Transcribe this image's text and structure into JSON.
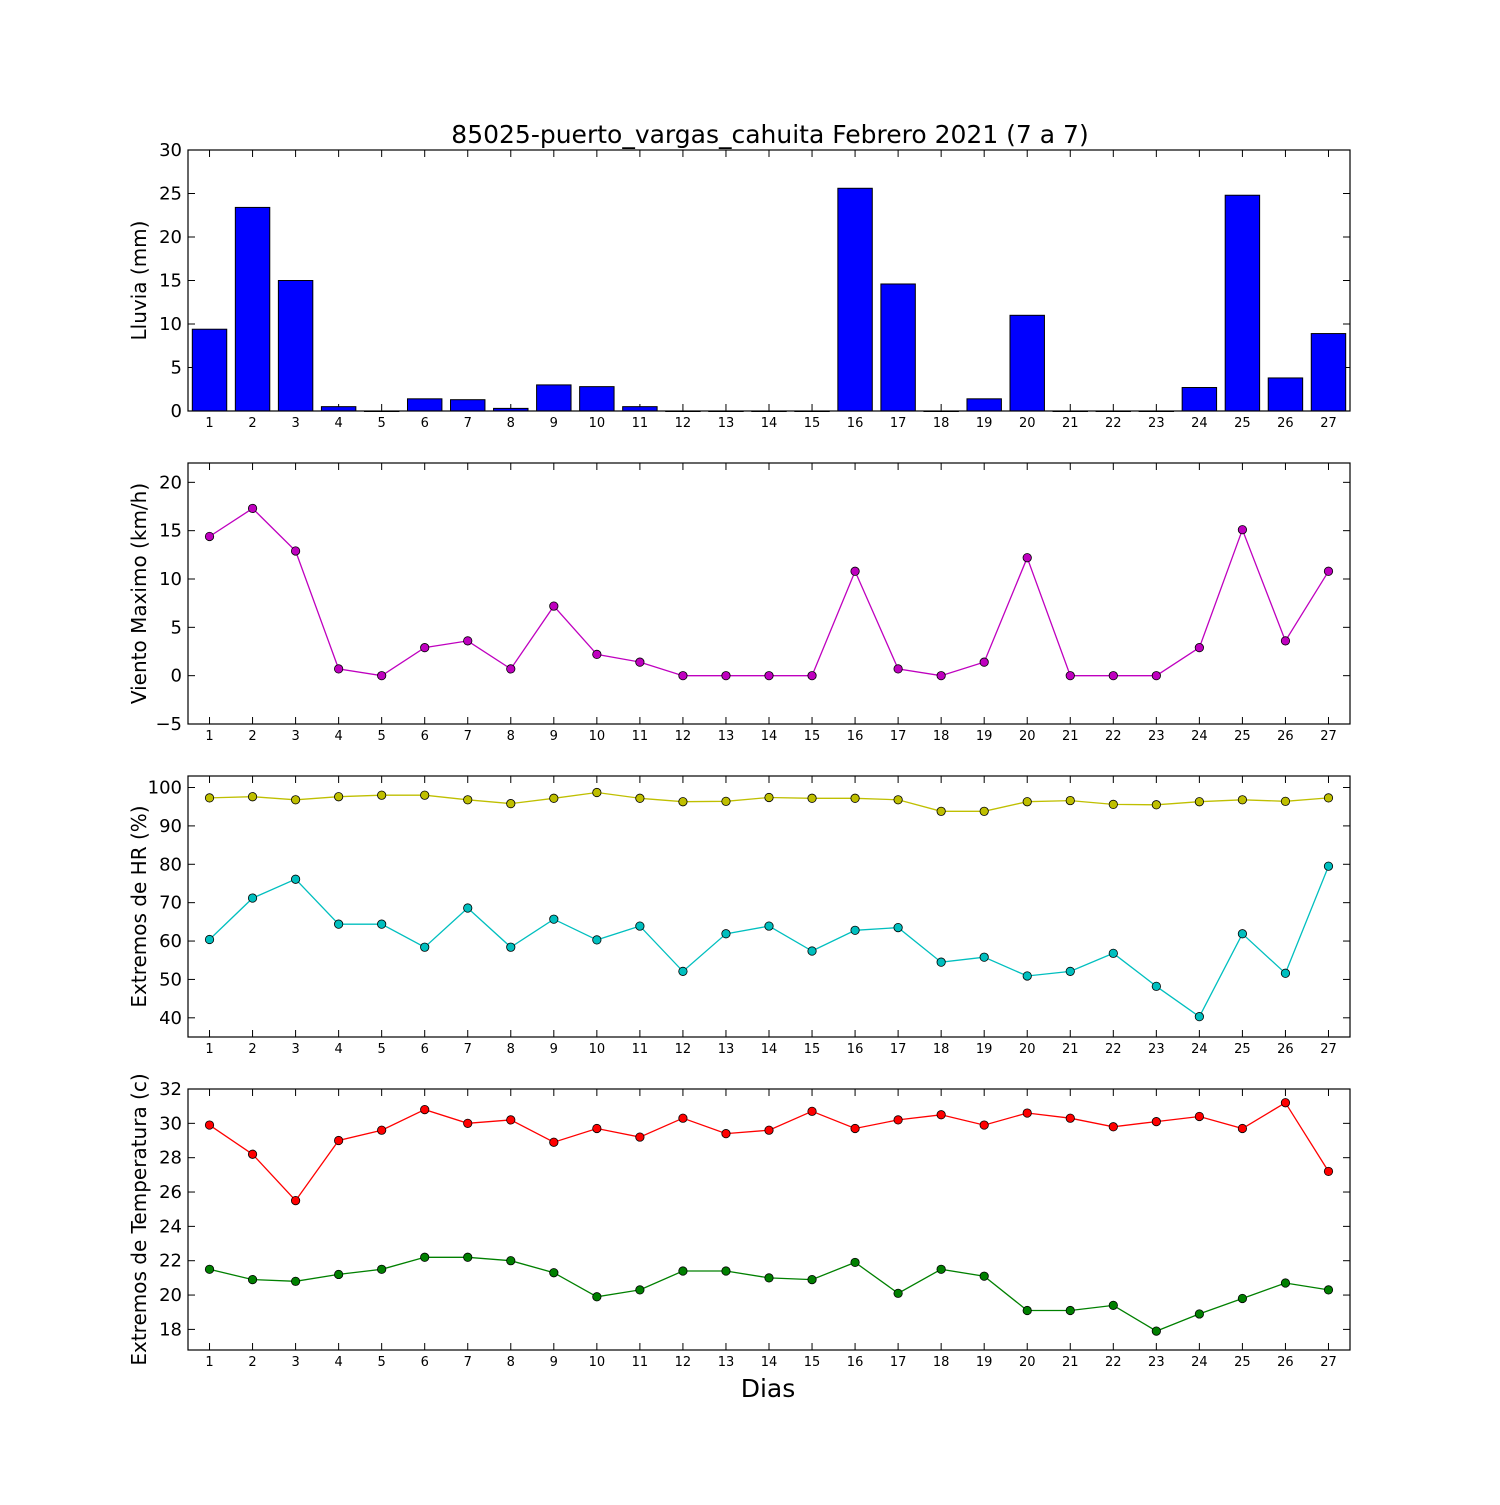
{
  "figure": {
    "title": "85025-puerto_vargas_cahuita Febrero 2021  (7 a 7)",
    "xlabel": "Dias"
  },
  "chart_data": [
    {
      "type": "bar",
      "ylabel": "Lluvia (mm)",
      "ylim": [
        0,
        30
      ],
      "yticks": [
        0,
        5,
        10,
        15,
        20,
        25,
        30
      ],
      "xticks": [
        1,
        2,
        3,
        4,
        5,
        6,
        7,
        8,
        9,
        10,
        11,
        12,
        13,
        14,
        15,
        16,
        17,
        18,
        19,
        20,
        21,
        22,
        23,
        24,
        25,
        26,
        27
      ],
      "categories": [
        1,
        2,
        3,
        4,
        5,
        6,
        7,
        8,
        9,
        10,
        11,
        12,
        13,
        14,
        15,
        16,
        17,
        18,
        19,
        20,
        21,
        22,
        23,
        24,
        25,
        26,
        27
      ],
      "series": [
        {
          "color": "#0000ff",
          "values": [
            9.4,
            23.4,
            15.0,
            0.5,
            0.0,
            1.4,
            1.3,
            0.3,
            3.0,
            2.8,
            0.5,
            0.0,
            0.0,
            0.0,
            0.0,
            25.6,
            14.6,
            0.0,
            1.4,
            11.0,
            0.0,
            0.0,
            0.0,
            2.7,
            24.8,
            3.8,
            8.9
          ]
        }
      ]
    },
    {
      "type": "line",
      "ylabel": "Viento Maximo (km/h)",
      "ylim": [
        -5,
        22
      ],
      "yticks": [
        -5,
        0,
        5,
        10,
        15,
        20
      ],
      "xticks": [
        1,
        2,
        3,
        4,
        5,
        6,
        7,
        8,
        9,
        10,
        11,
        12,
        13,
        14,
        15,
        16,
        17,
        18,
        19,
        20,
        21,
        22,
        23,
        24,
        25,
        26,
        27
      ],
      "x": [
        1,
        2,
        3,
        4,
        5,
        6,
        7,
        8,
        9,
        10,
        11,
        12,
        13,
        14,
        15,
        16,
        17,
        18,
        19,
        20,
        21,
        22,
        23,
        24,
        25,
        26,
        27
      ],
      "series": [
        {
          "color": "#bf00bf",
          "values": [
            14.4,
            17.3,
            12.9,
            0.7,
            0.0,
            2.9,
            3.6,
            0.7,
            7.2,
            2.2,
            1.4,
            0.0,
            0.0,
            0.0,
            0.0,
            10.8,
            0.7,
            0.0,
            1.4,
            12.2,
            0.0,
            0.0,
            0.0,
            2.9,
            15.1,
            3.6,
            10.8
          ]
        }
      ]
    },
    {
      "type": "line",
      "ylabel": "Extremos de HR (%)",
      "ylim": [
        35,
        103
      ],
      "yticks": [
        40,
        50,
        60,
        70,
        80,
        90,
        100
      ],
      "xticks": [
        1,
        2,
        3,
        4,
        5,
        6,
        7,
        8,
        9,
        10,
        11,
        12,
        13,
        14,
        15,
        16,
        17,
        18,
        19,
        20,
        21,
        22,
        23,
        24,
        25,
        26,
        27
      ],
      "x": [
        1,
        2,
        3,
        4,
        5,
        6,
        7,
        8,
        9,
        10,
        11,
        12,
        13,
        14,
        15,
        16,
        17,
        18,
        19,
        20,
        21,
        22,
        23,
        24,
        25,
        26,
        27
      ],
      "series": [
        {
          "color": "#bfbf00",
          "values": [
            97.3,
            97.6,
            96.8,
            97.6,
            98.0,
            98.0,
            96.8,
            95.8,
            97.2,
            98.7,
            97.2,
            96.3,
            96.4,
            97.4,
            97.2,
            97.2,
            96.8,
            93.8,
            93.8,
            96.3,
            96.6,
            95.6,
            95.5,
            96.3,
            96.8,
            96.4,
            97.3
          ]
        },
        {
          "color": "#00bfbf",
          "values": [
            60.4,
            71.2,
            76.1,
            64.4,
            64.4,
            58.4,
            68.6,
            58.4,
            65.7,
            60.3,
            63.9,
            52.1,
            61.9,
            63.9,
            57.4,
            62.8,
            63.5,
            54.5,
            55.8,
            50.9,
            52.1,
            56.8,
            48.2,
            40.3,
            61.9,
            51.6,
            79.5
          ]
        }
      ]
    },
    {
      "type": "line",
      "ylabel": "Extremos de Temperatura (c)",
      "ylim": [
        16.8,
        32
      ],
      "yticks": [
        18,
        20,
        22,
        24,
        26,
        28,
        30,
        32
      ],
      "xticks": [
        1,
        2,
        3,
        4,
        5,
        6,
        7,
        8,
        9,
        10,
        11,
        12,
        13,
        14,
        15,
        16,
        17,
        18,
        19,
        20,
        21,
        22,
        23,
        24,
        25,
        26,
        27
      ],
      "x": [
        1,
        2,
        3,
        4,
        5,
        6,
        7,
        8,
        9,
        10,
        11,
        12,
        13,
        14,
        15,
        16,
        17,
        18,
        19,
        20,
        21,
        22,
        23,
        24,
        25,
        26,
        27
      ],
      "series": [
        {
          "color": "#ff0000",
          "values": [
            29.9,
            28.2,
            25.5,
            29.0,
            29.6,
            30.8,
            30.0,
            30.2,
            28.9,
            29.7,
            29.2,
            30.3,
            29.4,
            29.6,
            30.7,
            29.7,
            30.2,
            30.5,
            29.9,
            30.6,
            30.3,
            29.8,
            30.1,
            30.4,
            29.7,
            31.2,
            27.2
          ]
        },
        {
          "color": "#008000",
          "values": [
            21.5,
            20.9,
            20.8,
            21.2,
            21.5,
            22.2,
            22.2,
            22.0,
            21.3,
            19.9,
            20.3,
            21.4,
            21.4,
            21.0,
            20.9,
            21.9,
            20.1,
            21.5,
            21.1,
            19.1,
            19.1,
            19.4,
            17.9,
            18.9,
            19.8,
            20.7,
            20.3
          ]
        }
      ]
    }
  ]
}
